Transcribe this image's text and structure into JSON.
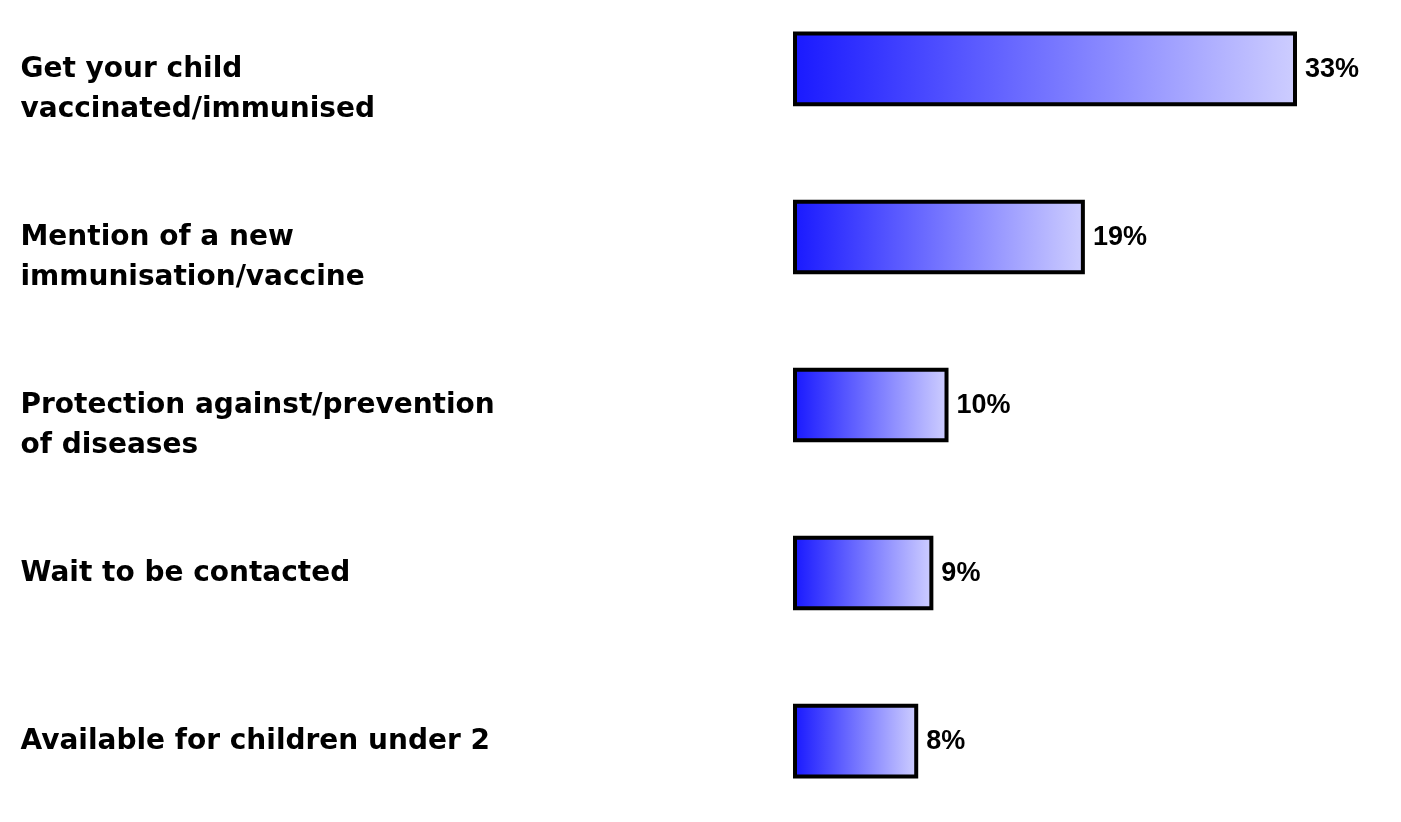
{
  "chart_data": {
    "type": "bar",
    "orientation": "horizontal",
    "categories": [
      "Get your child vaccinated/immunised",
      "Mention of a new immunisation/vaccine",
      "Protection against/prevention of diseases",
      "Wait to be contacted",
      "Available for children under 2"
    ],
    "values": [
      33,
      19,
      10,
      9,
      8
    ],
    "value_labels": [
      "33%",
      "19%",
      "10%",
      "9%",
      "8%"
    ],
    "color": "#1a1aff"
  }
}
